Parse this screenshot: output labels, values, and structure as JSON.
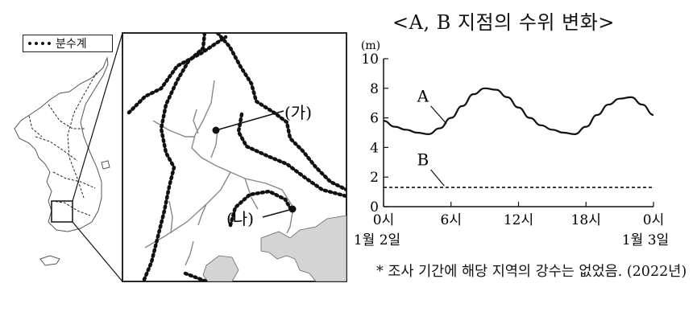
{
  "legend": {
    "label": "분수계"
  },
  "inset_map": {
    "labels": [
      {
        "id": "ga",
        "text": "(가)"
      },
      {
        "id": "na",
        "text": "(나)"
      }
    ]
  },
  "chart_data": {
    "type": "line",
    "title": "<A, B 지점의 수위 변화>",
    "y_unit": "(m)",
    "ylim": [
      0,
      10
    ],
    "y_ticks": [
      "0",
      "2",
      "4",
      "6",
      "8",
      "10"
    ],
    "x_ticks": [
      "0시",
      "6시",
      "12시",
      "18시",
      "0시"
    ],
    "x_date_labels": [
      "1월 2일",
      "1월 3일"
    ],
    "xlim_hours": [
      0,
      24
    ],
    "series": [
      {
        "name": "A",
        "points": [
          [
            0,
            5.8
          ],
          [
            1,
            5.4
          ],
          [
            2,
            5.2
          ],
          [
            3,
            5.0
          ],
          [
            4,
            4.9
          ],
          [
            5,
            5.3
          ],
          [
            6,
            6.0
          ],
          [
            7,
            6.8
          ],
          [
            8,
            7.6
          ],
          [
            9,
            8.0
          ],
          [
            10,
            7.9
          ],
          [
            11,
            7.4
          ],
          [
            12,
            6.7
          ],
          [
            13,
            6.0
          ],
          [
            14,
            5.5
          ],
          [
            15,
            5.2
          ],
          [
            16,
            5.0
          ],
          [
            17,
            4.9
          ],
          [
            18,
            5.4
          ],
          [
            19,
            6.2
          ],
          [
            20,
            6.9
          ],
          [
            21,
            7.3
          ],
          [
            22,
            7.4
          ],
          [
            23,
            6.9
          ],
          [
            24,
            6.2
          ]
        ]
      },
      {
        "name": "B",
        "points": [
          [
            0,
            1.3
          ],
          [
            6,
            1.3
          ],
          [
            12,
            1.3
          ],
          [
            18,
            1.3
          ],
          [
            24,
            1.3
          ]
        ]
      }
    ]
  },
  "footnote": {
    "text": "* 조사 기간에 해당 지역의 강수는 없었음. (2022년)"
  }
}
